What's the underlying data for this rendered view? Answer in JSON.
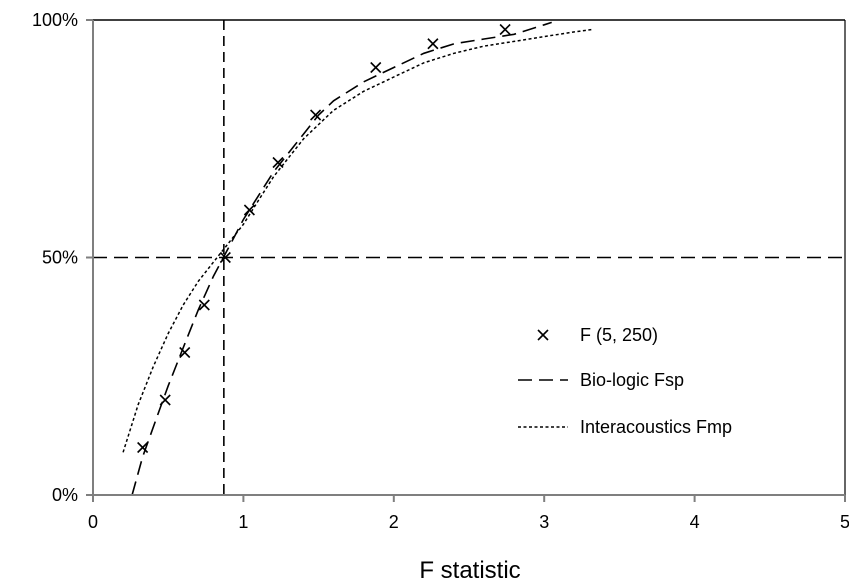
{
  "chart_data": {
    "type": "line",
    "title": "",
    "xlabel": "F statistic",
    "ylabel": "",
    "xlim": [
      0,
      5
    ],
    "ylim": [
      0,
      100
    ],
    "x_ticks": [
      "0",
      "1",
      "2",
      "3",
      "4",
      "5"
    ],
    "y_ticks": [
      "0%",
      "50%",
      "100%"
    ],
    "grid": false,
    "legend_position": "bottom-right",
    "reference_lines": [
      {
        "orientation": "vertical",
        "x": 0.87
      },
      {
        "orientation": "horizontal",
        "y": 50
      },
      {
        "orientation": "horizontal",
        "y": 100
      }
    ],
    "series": [
      {
        "name": "F (5, 250)",
        "style": "markers-x",
        "points": [
          [
            0.33,
            10
          ],
          [
            0.48,
            20
          ],
          [
            0.61,
            30
          ],
          [
            0.74,
            40
          ],
          [
            0.88,
            50
          ],
          [
            1.04,
            60
          ],
          [
            1.23,
            70
          ],
          [
            1.48,
            80
          ],
          [
            1.88,
            90
          ],
          [
            2.26,
            95
          ],
          [
            2.74,
            98
          ]
        ]
      },
      {
        "name": "Bio-logic Fsp",
        "style": "long-dash",
        "points": [
          [
            0.26,
            0
          ],
          [
            0.33,
            8
          ],
          [
            0.42,
            16
          ],
          [
            0.5,
            23
          ],
          [
            0.6,
            31
          ],
          [
            0.7,
            39
          ],
          [
            0.8,
            46
          ],
          [
            0.9,
            52
          ],
          [
            1.0,
            58
          ],
          [
            1.1,
            63
          ],
          [
            1.2,
            68
          ],
          [
            1.3,
            72
          ],
          [
            1.4,
            76
          ],
          [
            1.5,
            80
          ],
          [
            1.6,
            83
          ],
          [
            1.8,
            87
          ],
          [
            2.0,
            90
          ],
          [
            2.2,
            93
          ],
          [
            2.4,
            95
          ],
          [
            2.6,
            96
          ],
          [
            2.8,
            97
          ],
          [
            3.0,
            99
          ],
          [
            3.05,
            99.5
          ]
        ]
      },
      {
        "name": "Interacoustics Fmp",
        "style": "short-dash",
        "points": [
          [
            0.2,
            9
          ],
          [
            0.3,
            19
          ],
          [
            0.4,
            27
          ],
          [
            0.5,
            34
          ],
          [
            0.6,
            40
          ],
          [
            0.7,
            45
          ],
          [
            0.8,
            49
          ],
          [
            0.9,
            53
          ],
          [
            1.0,
            57
          ],
          [
            1.1,
            62
          ],
          [
            1.2,
            67
          ],
          [
            1.3,
            71
          ],
          [
            1.4,
            75
          ],
          [
            1.5,
            78
          ],
          [
            1.6,
            81
          ],
          [
            1.8,
            85
          ],
          [
            2.0,
            88
          ],
          [
            2.2,
            91
          ],
          [
            2.4,
            93
          ],
          [
            2.6,
            94.5
          ],
          [
            2.8,
            95.5
          ],
          [
            3.0,
            96.5
          ],
          [
            3.2,
            97.5
          ],
          [
            3.32,
            98
          ]
        ]
      }
    ]
  }
}
